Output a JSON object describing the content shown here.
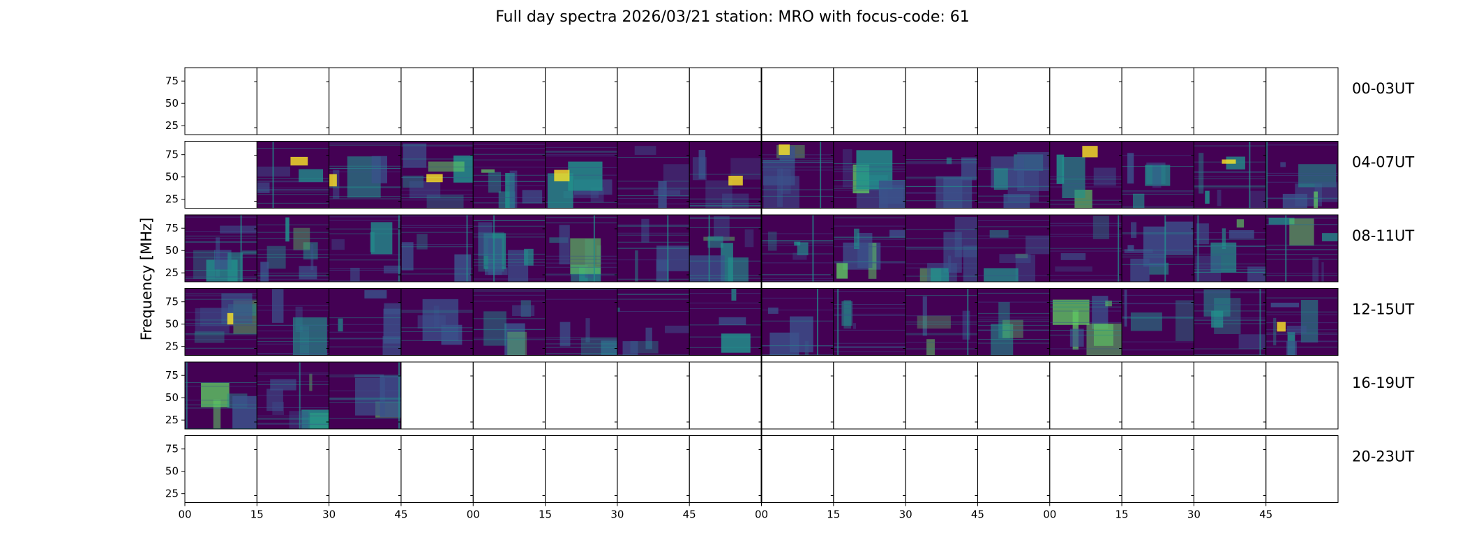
{
  "chart_data": {
    "type": "heatmap",
    "title": "Full day spectra 2026/03/21 station: MRO with focus-code: 61",
    "ylabel": "Frequency [MHz]",
    "xlabel": "",
    "ylim": [
      15,
      90
    ],
    "yticks": [
      "75",
      "50",
      "25"
    ],
    "xticks": [
      "00",
      "15",
      "30",
      "45",
      "00",
      "15",
      "30",
      "45",
      "00",
      "15",
      "30",
      "45",
      "00",
      "15",
      "30",
      "45"
    ],
    "panels_per_row": 16,
    "rows": [
      {
        "label": "00-03UT",
        "filled": []
      },
      {
        "label": "04-07UT",
        "filled": [
          2,
          3,
          4,
          5,
          6,
          7,
          8,
          9,
          10,
          11,
          12,
          13,
          14,
          15,
          16
        ]
      },
      {
        "label": "08-11UT",
        "filled": [
          1,
          2,
          3,
          4,
          5,
          6,
          7,
          8,
          9,
          10,
          11,
          12,
          13,
          14,
          15,
          16
        ]
      },
      {
        "label": "12-15UT",
        "filled": [
          1,
          2,
          3,
          4,
          5,
          6,
          7,
          8,
          9,
          10,
          11,
          12,
          13,
          14,
          15,
          16
        ]
      },
      {
        "label": "16-19UT",
        "filled": [
          1,
          2,
          3
        ]
      },
      {
        "label": "20-23UT",
        "filled": []
      }
    ],
    "colormap": [
      "#440154",
      "#3b528b",
      "#21918c",
      "#5ec962",
      "#fde725"
    ]
  }
}
